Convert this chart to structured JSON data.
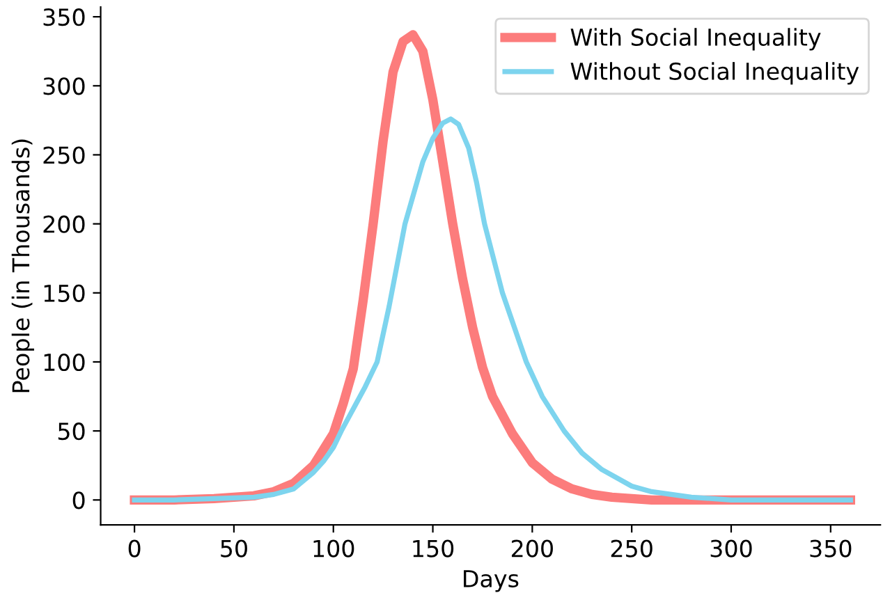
{
  "chart_data": {
    "type": "line",
    "xlabel": "Days",
    "ylabel": "People (in Thousands)",
    "xlim": [
      -17,
      375
    ],
    "ylim": [
      -18,
      357
    ],
    "xticks": [
      0,
      50,
      100,
      150,
      200,
      250,
      300,
      350
    ],
    "yticks": [
      0,
      50,
      100,
      150,
      200,
      250,
      300,
      350
    ],
    "grid": false,
    "legend": "top right",
    "marker": "none",
    "line_style": "solid",
    "series": [
      {
        "name": "With Social Inequality",
        "color": "#fc7c7c",
        "x": [
          0,
          20,
          40,
          60,
          70,
          80,
          90,
          100,
          105,
          110,
          115,
          120,
          125,
          130,
          135,
          140,
          145,
          150,
          155,
          160,
          165,
          170,
          175,
          180,
          190,
          200,
          210,
          220,
          230,
          240,
          260,
          280,
          300,
          360
        ],
        "values": [
          0,
          0,
          1,
          3,
          6,
          12,
          25,
          48,
          70,
          95,
          145,
          200,
          260,
          310,
          332,
          337,
          325,
          290,
          245,
          200,
          160,
          125,
          96,
          75,
          48,
          27,
          15,
          8,
          4,
          2,
          0,
          0,
          0,
          0
        ]
      },
      {
        "name": "Without Social Inequality",
        "color": "#7dd4ee",
        "x": [
          0,
          20,
          40,
          60,
          70,
          80,
          90,
          95,
          100,
          104,
          110,
          116,
          122,
          128,
          132,
          136,
          145,
          150,
          155,
          159,
          163,
          168,
          172,
          176,
          185,
          197,
          205,
          216,
          225,
          235,
          250,
          260,
          280,
          300,
          330,
          360
        ],
        "values": [
          0,
          0,
          1,
          2,
          4,
          8,
          20,
          28,
          38,
          50,
          66,
          82,
          100,
          140,
          170,
          200,
          245,
          262,
          273,
          276,
          272,
          255,
          230,
          200,
          150,
          100,
          75,
          50,
          34,
          22,
          10,
          6,
          2,
          0,
          0,
          0
        ]
      }
    ]
  }
}
